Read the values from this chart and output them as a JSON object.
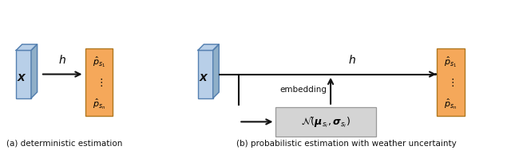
{
  "fig_width": 6.4,
  "fig_height": 1.94,
  "dpi": 100,
  "bg_color": "#ffffff",
  "box_blue_face": "#b8cfe8",
  "box_blue_side": "#8fafc8",
  "box_blue_edge": "#5580b0",
  "box_orange_face": "#f5a85a",
  "box_orange_edge": "#b07820",
  "box_gray_face": "#d4d4d4",
  "box_gray_edge": "#999999",
  "caption_a": "(a) deterministic estimation",
  "caption_b": "(b) probabilistic estimation with weather uncertainty",
  "label_X": "X",
  "label_h_left": "$h$",
  "label_h_right": "$h$",
  "label_ps1": "$\\hat{p}_{s_1}$",
  "label_dots": "$\\vdots$",
  "label_psn": "$\\hat{p}_{s_n}$",
  "label_normal": "$\\mathcal{N}(\\boldsymbol{\\mu}_{s_i}, \\boldsymbol{\\sigma}_{s_i})$",
  "label_embedding": "embedding",
  "arrow_color": "#111111",
  "xlim": [
    0,
    10
  ],
  "ylim": [
    0,
    3
  ]
}
